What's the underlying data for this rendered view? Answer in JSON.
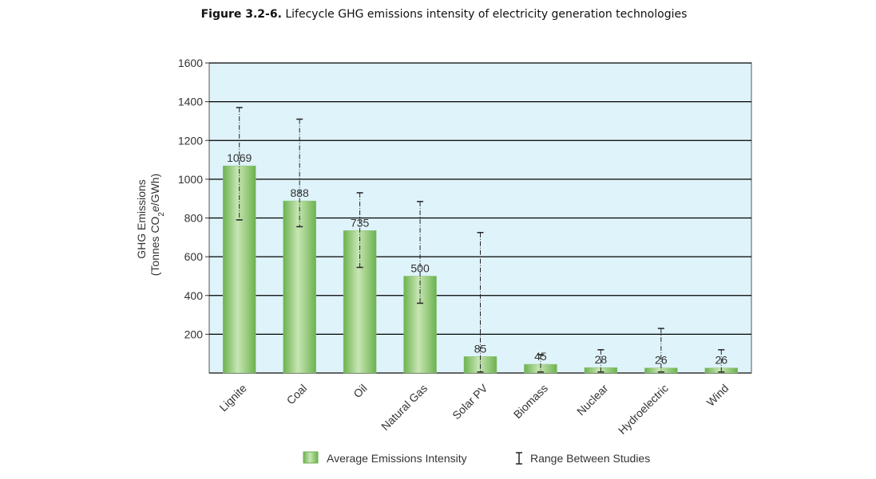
{
  "figure": {
    "label": "Figure 3.2-6.",
    "caption": "Lifecycle GHG emissions intensity of electricity generation technologies"
  },
  "chart_data": {
    "type": "bar",
    "title": "Lifecycle GHG emissions intensity of electricity generation technologies",
    "ylabel_line1": "GHG Emissions",
    "ylabel_line2_pre": "(Tonnes CO",
    "ylabel_line2_sub1": "2",
    "ylabel_line2_mid": "e",
    "ylabel_line2_post": "/GWh)",
    "ylim": [
      0,
      1600
    ],
    "yticks": [
      200,
      400,
      600,
      800,
      1000,
      1200,
      1400,
      1600
    ],
    "grid": true,
    "categories": [
      "Lignite",
      "Coal",
      "Oil",
      "Natural Gas",
      "Solar PV",
      "Biomass",
      "Nuclear",
      "Hydroelectric",
      "Wind"
    ],
    "values": [
      1069,
      888,
      735,
      500,
      85,
      45,
      28,
      26,
      26
    ],
    "range_low": [
      790,
      755,
      545,
      360,
      5,
      5,
      5,
      5,
      5
    ],
    "range_high": [
      1370,
      1310,
      930,
      885,
      725,
      95,
      120,
      230,
      120
    ],
    "legend": {
      "position": "bottom",
      "bar_label": "Average Emissions Intensity",
      "range_label": "Range Between Studies"
    },
    "colors": {
      "plot_bg": "#dff3fa",
      "bar_light": "#c8e6b4",
      "bar_dark": "#6cb24f",
      "grid": "#000000"
    }
  }
}
